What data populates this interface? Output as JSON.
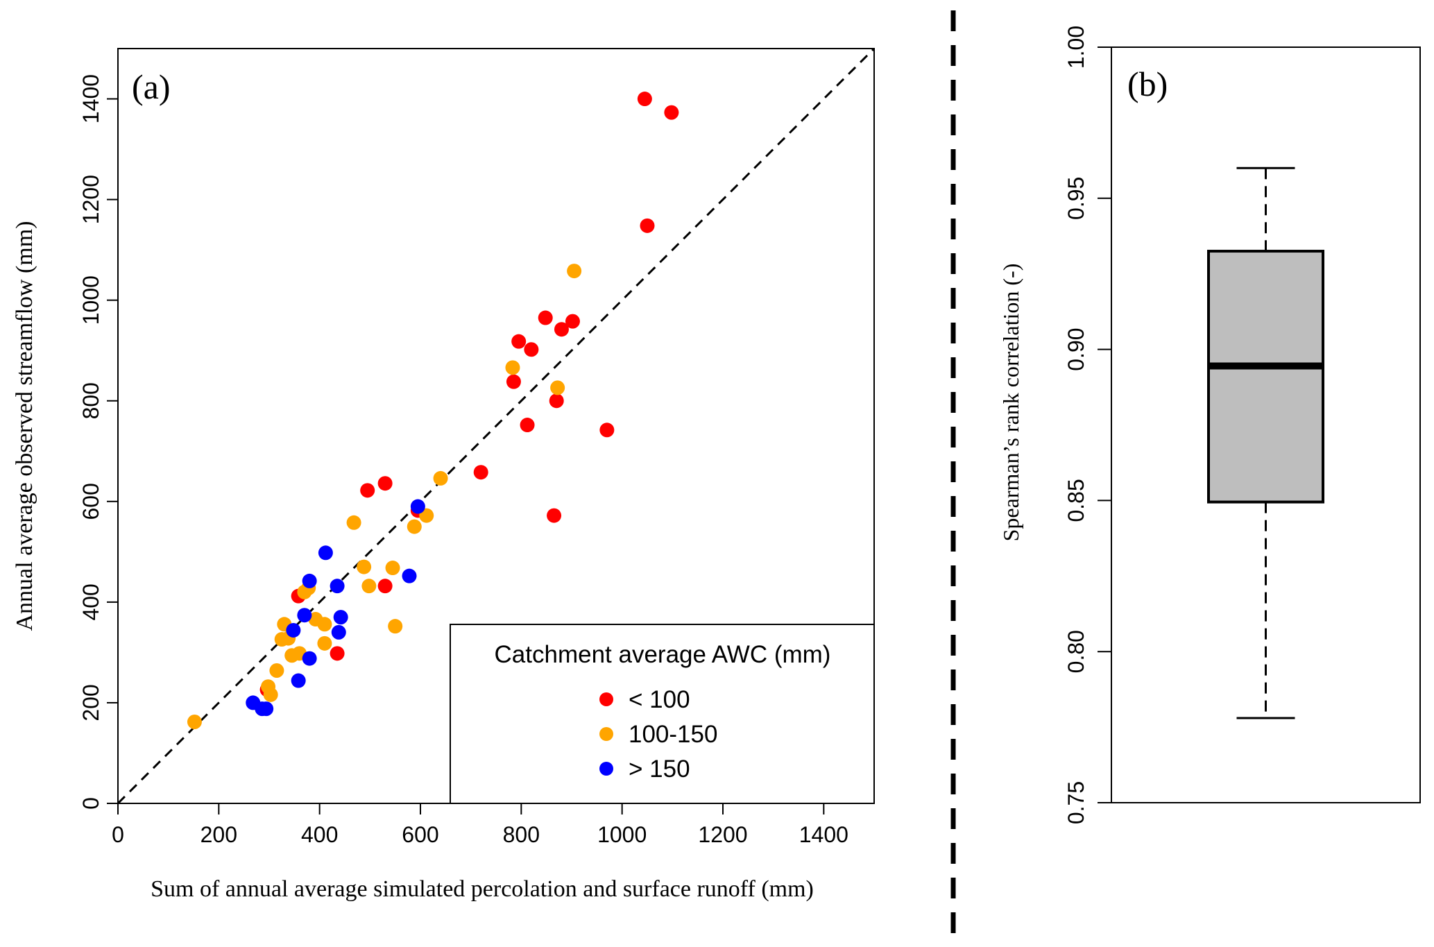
{
  "chart_data": [
    {
      "type": "scatter",
      "panel_label": "(a)",
      "title": "",
      "xlabel": "Sum of annual average simulated percolation and surface runoff (mm)",
      "ylabel": "Annual average observed streamflow (mm)",
      "xlim": [
        0,
        1500
      ],
      "ylim": [
        0,
        1500
      ],
      "xticks": [
        0,
        200,
        400,
        600,
        800,
        1000,
        1200,
        1400
      ],
      "yticks": [
        0,
        200,
        400,
        600,
        800,
        1000,
        1200,
        1400
      ],
      "xtick_labels": [
        "0",
        "200",
        "400",
        "600",
        "800",
        "1000",
        "1200",
        "1400"
      ],
      "ytick_labels": [
        "0",
        "200",
        "400",
        "600",
        "800",
        "1000",
        "1200",
        "1400"
      ],
      "grid": false,
      "reference_line": {
        "type": "1:1",
        "style": "dashed",
        "color": "#000000"
      },
      "legend": {
        "title": "Catchment average AWC (mm)",
        "placement": "bottom-right",
        "entries": [
          "< 100",
          "100-150",
          "> 150"
        ]
      },
      "series": [
        {
          "name": "< 100",
          "color": "#ff0000",
          "points": [
            [
              1045,
              1400
            ],
            [
              1098,
              1373
            ],
            [
              1050,
              1148
            ],
            [
              848,
              965
            ],
            [
              902,
              958
            ],
            [
              880,
              942
            ],
            [
              795,
              918
            ],
            [
              820,
              902
            ],
            [
              785,
              838
            ],
            [
              870,
              800
            ],
            [
              812,
              752
            ],
            [
              970,
              742
            ],
            [
              720,
              658
            ],
            [
              530,
              636
            ],
            [
              495,
              622
            ],
            [
              865,
              572
            ],
            [
              595,
              582
            ],
            [
              358,
              412
            ],
            [
              530,
              432
            ],
            [
              435,
              298
            ],
            [
              296,
              226
            ]
          ]
        },
        {
          "name": "100-150",
          "color": "#ffa500",
          "points": [
            [
              905,
              1058
            ],
            [
              783,
              866
            ],
            [
              872,
              826
            ],
            [
              640,
              646
            ],
            [
              468,
              558
            ],
            [
              588,
              550
            ],
            [
              612,
              572
            ],
            [
              488,
              470
            ],
            [
              545,
              468
            ],
            [
              498,
              432
            ],
            [
              378,
              428
            ],
            [
              370,
              420
            ],
            [
              392,
              366
            ],
            [
              410,
              356
            ],
            [
              330,
              356
            ],
            [
              550,
              352
            ],
            [
              325,
              326
            ],
            [
              338,
              328
            ],
            [
              410,
              318
            ],
            [
              345,
              294
            ],
            [
              360,
              298
            ],
            [
              315,
              264
            ],
            [
              298,
              232
            ],
            [
              303,
              216
            ],
            [
              152,
              162
            ]
          ]
        },
        {
          "name": "> 150",
          "color": "#0000ff",
          "points": [
            [
              595,
              590
            ],
            [
              412,
              498
            ],
            [
              380,
              442
            ],
            [
              435,
              432
            ],
            [
              578,
              452
            ],
            [
              370,
              374
            ],
            [
              442,
              370
            ],
            [
              348,
              344
            ],
            [
              438,
              340
            ],
            [
              380,
              288
            ],
            [
              358,
              244
            ],
            [
              268,
              200
            ],
            [
              286,
              188
            ],
            [
              294,
              188
            ]
          ]
        }
      ]
    },
    {
      "type": "box",
      "panel_label": "(b)",
      "title": "",
      "xlabel": "",
      "ylabel": "Spearman’s rank correlation (-)",
      "ylim": [
        0.75,
        1.0
      ],
      "yticks": [
        0.75,
        0.8,
        0.85,
        0.9,
        0.95,
        1.0
      ],
      "ytick_labels": [
        "0.75",
        "0.80",
        "0.85",
        "0.90",
        "0.95",
        "1.00"
      ],
      "grid": false,
      "box": {
        "whisker_low": 0.778,
        "q1": 0.8495,
        "median": 0.8945,
        "q3": 0.9325,
        "whisker_high": 0.96,
        "fill": "#bebebe"
      }
    }
  ],
  "divider": {
    "style": "dashed",
    "color": "#000000"
  }
}
